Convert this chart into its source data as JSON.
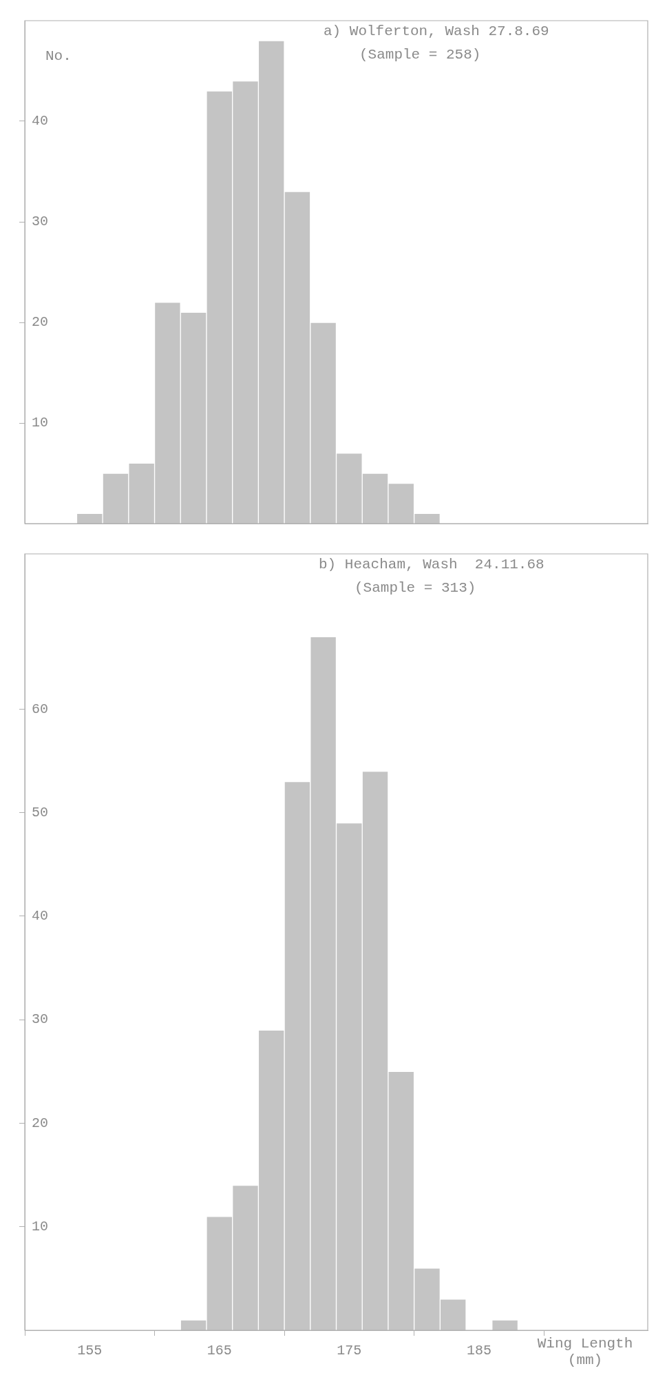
{
  "chart_data": [
    {
      "type": "histogram",
      "title": "a) Wolferton, Wash 27.8.69",
      "subtitle": "(Sample = 258)",
      "ylabel": "No.",
      "bins": [
        154,
        156,
        158,
        160,
        162,
        164,
        166,
        168,
        170,
        172,
        174,
        176,
        178,
        180,
        182
      ],
      "values": [
        1,
        5,
        6,
        22,
        21,
        43,
        44,
        48,
        33,
        20,
        7,
        5,
        4,
        1
      ],
      "color": "#c4c4c4",
      "xlim": [
        150,
        198
      ],
      "xticks": [
        155,
        165,
        175,
        185
      ],
      "ylim": [
        0,
        50
      ],
      "yticks": [
        10,
        20,
        30,
        40
      ],
      "tick_labels": "y",
      "grid": false
    },
    {
      "type": "histogram",
      "title": "b) Heacham, Wash  24.11.68",
      "subtitle": "(Sample = 313)",
      "xlabel": "Wing Length (mm)",
      "bins": [
        162,
        164,
        166,
        168,
        170,
        172,
        174,
        176,
        178,
        180,
        182,
        184,
        186,
        188
      ],
      "values": [
        1,
        11,
        14,
        29,
        53,
        67,
        49,
        54,
        25,
        6,
        3,
        0,
        1
      ],
      "color": "#c4c4c4",
      "xlim": [
        150,
        198
      ],
      "xticks": [
        155,
        165,
        175,
        185
      ],
      "ylim": [
        0,
        75
      ],
      "yticks": [
        10,
        20,
        30,
        40,
        50,
        60
      ],
      "grid": false
    }
  ]
}
